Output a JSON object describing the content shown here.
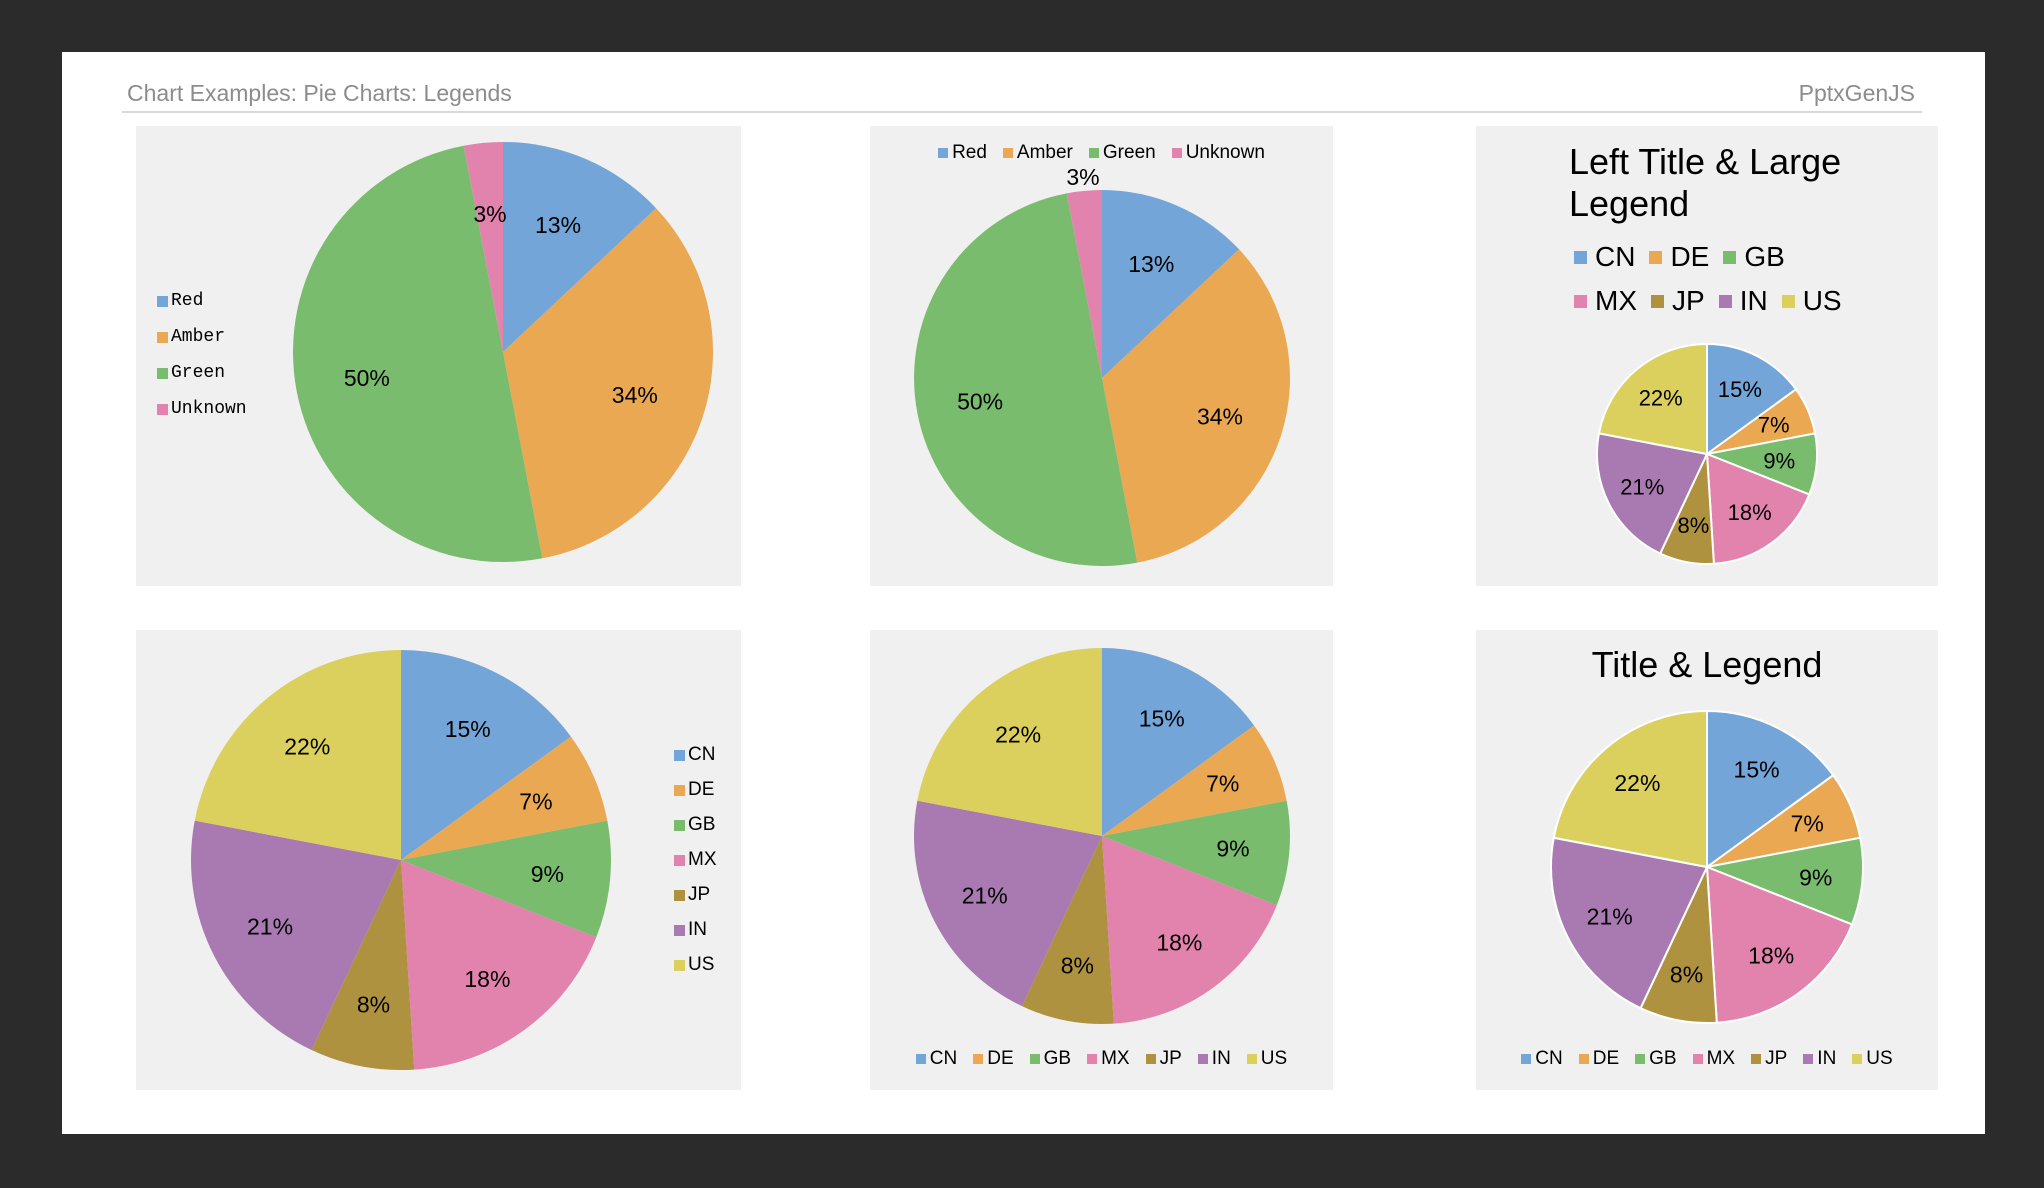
{
  "header": {
    "title": "Chart Examples: Pie Charts: Legends",
    "brand": "PptxGenJS"
  },
  "colors": {
    "Red": "#74A5D8",
    "Amber": "#EBA852",
    "Green": "#7ABC6E",
    "Unknown": "#E183AD",
    "CN": "#74A5D8",
    "DE": "#EBA852",
    "GB": "#7ABC6E",
    "MX": "#E183AD",
    "JP": "#AE9240",
    "IN": "#A87AB1",
    "US": "#DBD05D"
  },
  "chart_data": [
    {
      "type": "pie",
      "categories": [
        "Red",
        "Amber",
        "Green",
        "Unknown"
      ],
      "values": [
        13,
        34,
        50,
        3
      ],
      "data_labels": [
        "13%",
        "34%",
        "50%",
        "3%"
      ],
      "legend": {
        "position": "left",
        "items": [
          "Red",
          "Amber",
          "Green",
          "Unknown"
        ]
      },
      "title": ""
    },
    {
      "type": "pie",
      "categories": [
        "Red",
        "Amber",
        "Green",
        "Unknown"
      ],
      "values": [
        13,
        34,
        50,
        3
      ],
      "data_labels": [
        "13%",
        "34%",
        "50%",
        "3%"
      ],
      "legend": {
        "position": "top",
        "items": [
          "Red",
          "Amber",
          "Green",
          "Unknown"
        ]
      },
      "title": ""
    },
    {
      "type": "pie",
      "categories": [
        "CN",
        "DE",
        "GB",
        "MX",
        "JP",
        "IN",
        "US"
      ],
      "values": [
        15,
        7,
        9,
        18,
        8,
        21,
        22
      ],
      "data_labels": [
        "15%",
        "7%",
        "9%",
        "18%",
        "8%",
        "21%",
        "22%"
      ],
      "legend": {
        "position": "top",
        "items": [
          "CN",
          "DE",
          "GB",
          "MX",
          "JP",
          "IN",
          "US"
        ]
      },
      "title": "Left Title & Large Legend"
    },
    {
      "type": "pie",
      "categories": [
        "CN",
        "DE",
        "GB",
        "MX",
        "JP",
        "IN",
        "US"
      ],
      "values": [
        15,
        7,
        9,
        18,
        8,
        21,
        22
      ],
      "data_labels": [
        "15%",
        "7%",
        "9%",
        "18%",
        "8%",
        "21%",
        "22%"
      ],
      "legend": {
        "position": "right",
        "items": [
          "CN",
          "DE",
          "GB",
          "MX",
          "JP",
          "IN",
          "US"
        ]
      },
      "title": ""
    },
    {
      "type": "pie",
      "categories": [
        "CN",
        "DE",
        "GB",
        "MX",
        "JP",
        "IN",
        "US"
      ],
      "values": [
        15,
        7,
        9,
        18,
        8,
        21,
        22
      ],
      "data_labels": [
        "15%",
        "7%",
        "9%",
        "18%",
        "8%",
        "21%",
        "22%"
      ],
      "legend": {
        "position": "bottom",
        "items": [
          "CN",
          "DE",
          "GB",
          "MX",
          "JP",
          "IN",
          "US"
        ]
      },
      "title": ""
    },
    {
      "type": "pie",
      "categories": [
        "CN",
        "DE",
        "GB",
        "MX",
        "JP",
        "IN",
        "US"
      ],
      "values": [
        15,
        7,
        9,
        18,
        8,
        21,
        22
      ],
      "data_labels": [
        "15%",
        "7%",
        "9%",
        "18%",
        "8%",
        "21%",
        "22%"
      ],
      "legend": {
        "position": "bottom",
        "items": [
          "CN",
          "DE",
          "GB",
          "MX",
          "JP",
          "IN",
          "US"
        ]
      },
      "title": "Title & Legend"
    }
  ]
}
